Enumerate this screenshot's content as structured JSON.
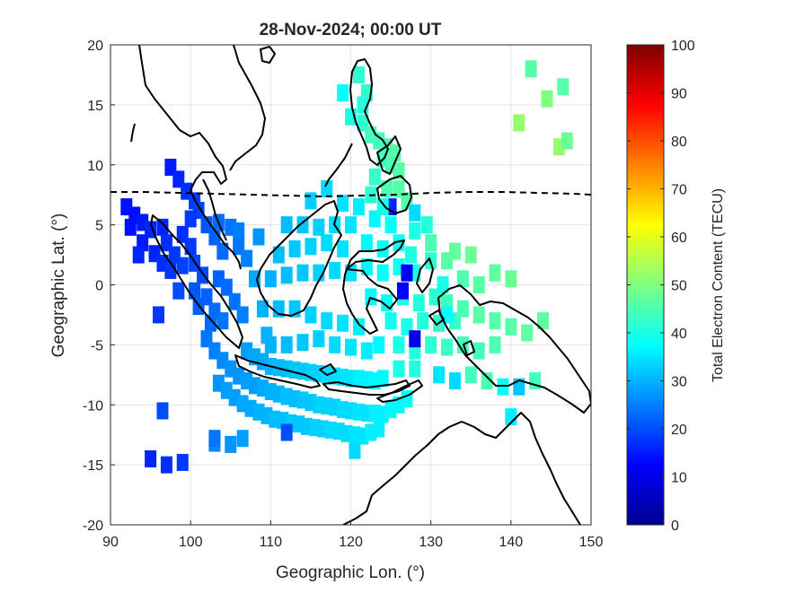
{
  "chart_data": {
    "type": "heatmap",
    "title": "28-Nov-2024; 00:00 UT",
    "xlabel": "Geographic Lon. (°)",
    "ylabel": "Geographic Lat. (°)",
    "xlim": [
      90,
      150
    ],
    "ylim": [
      -20,
      20
    ],
    "xticks": [
      "90",
      "100",
      "110",
      "120",
      "130",
      "140",
      "150"
    ],
    "yticks": [
      "-20",
      "-15",
      "-10",
      "-5",
      "0",
      "5",
      "10",
      "15",
      "20"
    ],
    "grid": true,
    "colorbar": {
      "label": "Total Electron Content (TECU)",
      "colormap": "jet",
      "range": [
        0,
        100
      ],
      "ticks": [
        "0",
        "10",
        "20",
        "30",
        "40",
        "50",
        "60",
        "70",
        "80",
        "90",
        "100"
      ]
    },
    "tec_patches": [
      [
        92.0,
        6.5,
        14
      ],
      [
        93.0,
        5.8,
        14
      ],
      [
        94.0,
        5.2,
        15
      ],
      [
        95.0,
        4.6,
        16
      ],
      [
        92.5,
        4.8,
        14
      ],
      [
        94.0,
        3.5,
        15
      ],
      [
        95.5,
        2.6,
        16
      ],
      [
        96.5,
        1.8,
        17
      ],
      [
        97.5,
        1.2,
        18
      ],
      [
        96.5,
        4.8,
        16
      ],
      [
        97.0,
        3.5,
        17
      ],
      [
        98.0,
        2.5,
        18
      ],
      [
        99.0,
        1.6,
        19
      ],
      [
        99.0,
        4.2,
        17
      ],
      [
        100.0,
        3.2,
        18
      ],
      [
        100.5,
        1.8,
        19
      ],
      [
        101.5,
        0.8,
        20
      ],
      [
        98.5,
        -0.5,
        20
      ],
      [
        100.5,
        -0.5,
        21
      ],
      [
        102.0,
        -1.0,
        22
      ],
      [
        103.0,
        -2.2,
        23
      ],
      [
        104.0,
        -3.0,
        24
      ],
      [
        102.5,
        -3.2,
        23
      ],
      [
        101.0,
        -1.8,
        22
      ],
      [
        103.5,
        0.5,
        22
      ],
      [
        104.5,
        -0.2,
        23
      ],
      [
        105.5,
        -1.4,
        24
      ],
      [
        106.5,
        -2.5,
        25
      ],
      [
        97.5,
        9.8,
        15
      ],
      [
        98.5,
        8.8,
        16
      ],
      [
        99.5,
        7.8,
        17
      ],
      [
        100.5,
        7.0,
        18
      ],
      [
        101.0,
        6.2,
        19
      ],
      [
        100.0,
        5.5,
        18
      ],
      [
        102.0,
        5.0,
        21
      ],
      [
        103.0,
        4.0,
        22
      ],
      [
        104.0,
        2.8,
        23
      ],
      [
        103.5,
        5.2,
        23
      ],
      [
        105.0,
        4.8,
        24
      ],
      [
        106.0,
        4.5,
        25
      ],
      [
        106.0,
        3.2,
        24
      ],
      [
        108.5,
        4.0,
        27
      ],
      [
        107.0,
        2.2,
        25
      ],
      [
        102.0,
        -4.5,
        24
      ],
      [
        103.0,
        -5.5,
        25
      ],
      [
        104.0,
        -6.3,
        26
      ],
      [
        105.0,
        -7.0,
        27
      ],
      [
        106.0,
        -7.6,
        27
      ],
      [
        107.0,
        -8.0,
        28
      ],
      [
        108.0,
        -8.4,
        28
      ],
      [
        109.0,
        -8.6,
        29
      ],
      [
        110.0,
        -8.9,
        30
      ],
      [
        111.0,
        -9.1,
        30
      ],
      [
        112.0,
        -9.3,
        31
      ],
      [
        113.0,
        -9.5,
        31
      ],
      [
        114.0,
        -9.6,
        32
      ],
      [
        115.0,
        -9.8,
        32
      ],
      [
        116.0,
        -10.0,
        33
      ],
      [
        117.0,
        -10.1,
        33
      ],
      [
        118.0,
        -10.2,
        33
      ],
      [
        119.0,
        -10.4,
        34
      ],
      [
        120.0,
        -10.5,
        34
      ],
      [
        121.0,
        -10.6,
        35
      ],
      [
        122.0,
        -10.7,
        35
      ],
      [
        123.0,
        -10.7,
        36
      ],
      [
        124.0,
        -10.8,
        36
      ],
      [
        125.0,
        -10.4,
        37
      ],
      [
        126.0,
        -10.0,
        37
      ],
      [
        127.0,
        -9.5,
        38
      ],
      [
        103.5,
        -8.2,
        27
      ],
      [
        104.5,
        -8.8,
        28
      ],
      [
        105.5,
        -9.4,
        28
      ],
      [
        106.5,
        -9.9,
        29
      ],
      [
        107.5,
        -10.3,
        29
      ],
      [
        108.5,
        -10.6,
        30
      ],
      [
        109.5,
        -10.9,
        30
      ],
      [
        110.5,
        -11.2,
        31
      ],
      [
        111.5,
        -11.3,
        31
      ],
      [
        112.5,
        -11.5,
        32
      ],
      [
        113.5,
        -11.6,
        32
      ],
      [
        114.5,
        -11.8,
        32
      ],
      [
        115.5,
        -11.9,
        33
      ],
      [
        116.5,
        -12.0,
        33
      ],
      [
        117.5,
        -12.1,
        34
      ],
      [
        118.5,
        -12.2,
        34
      ],
      [
        119.5,
        -12.4,
        34
      ],
      [
        120.5,
        -12.5,
        35
      ],
      [
        121.5,
        -12.6,
        35
      ],
      [
        122.5,
        -12.3,
        36
      ],
      [
        123.5,
        -12.0,
        36
      ],
      [
        112.0,
        -12.3,
        20
      ],
      [
        106.5,
        -12.8,
        28
      ],
      [
        105.0,
        -13.3,
        27
      ],
      [
        103.0,
        -13.2,
        26
      ],
      [
        120.5,
        -13.8,
        34
      ],
      [
        107.0,
        -5.5,
        28
      ],
      [
        108.0,
        -6.0,
        29
      ],
      [
        109.0,
        -6.4,
        29
      ],
      [
        110.0,
        -6.8,
        30
      ],
      [
        111.0,
        -6.9,
        31
      ],
      [
        112.0,
        -7.0,
        31
      ],
      [
        113.0,
        -7.1,
        32
      ],
      [
        114.0,
        -7.2,
        32
      ],
      [
        115.0,
        -7.3,
        33
      ],
      [
        116.0,
        -7.4,
        33
      ],
      [
        117.0,
        -7.5,
        34
      ],
      [
        118.0,
        -7.6,
        34
      ],
      [
        119.0,
        -7.7,
        35
      ],
      [
        120.0,
        -7.8,
        35
      ],
      [
        121.0,
        -7.8,
        36
      ],
      [
        122.0,
        -7.9,
        36
      ],
      [
        123.0,
        -8.0,
        37
      ],
      [
        124.0,
        -7.8,
        37
      ],
      [
        110.0,
        -5.0,
        30
      ],
      [
        112.0,
        -5.0,
        31
      ],
      [
        114.0,
        -4.8,
        32
      ],
      [
        116.0,
        -4.5,
        33
      ],
      [
        118.0,
        -5.0,
        34
      ],
      [
        120.0,
        -5.2,
        35
      ],
      [
        122.0,
        -5.5,
        36
      ],
      [
        123.5,
        -5.0,
        37
      ],
      [
        121.0,
        -3.5,
        36
      ],
      [
        119.0,
        -3.2,
        35
      ],
      [
        117.0,
        -3.0,
        34
      ],
      [
        115.0,
        -2.5,
        33
      ],
      [
        113.0,
        -2.0,
        32
      ],
      [
        111.0,
        -2.0,
        31
      ],
      [
        109.0,
        -2.0,
        30
      ],
      [
        108.0,
        0.5,
        29
      ],
      [
        110.0,
        0.5,
        30
      ],
      [
        112.0,
        0.8,
        31
      ],
      [
        114.0,
        1.0,
        32
      ],
      [
        116.0,
        1.0,
        33
      ],
      [
        118.0,
        1.2,
        34
      ],
      [
        120.0,
        1.0,
        35
      ],
      [
        111.0,
        2.5,
        31
      ],
      [
        113.0,
        3.0,
        32
      ],
      [
        115.0,
        3.2,
        33
      ],
      [
        117.0,
        3.5,
        34
      ],
      [
        119.0,
        3.0,
        35
      ],
      [
        112.0,
        5.0,
        31
      ],
      [
        114.0,
        5.0,
        32
      ],
      [
        116.0,
        4.8,
        33
      ],
      [
        118.0,
        5.0,
        34
      ],
      [
        120.0,
        5.0,
        35
      ],
      [
        115.0,
        7.0,
        33
      ],
      [
        117.0,
        8.0,
        34
      ],
      [
        119.0,
        6.8,
        35
      ],
      [
        121.0,
        6.5,
        36
      ],
      [
        123.0,
        5.5,
        37
      ],
      [
        125.0,
        5.0,
        38
      ],
      [
        122.0,
        3.5,
        37
      ],
      [
        124.0,
        3.0,
        38
      ],
      [
        126.0,
        3.5,
        39
      ],
      [
        128.0,
        4.5,
        40
      ],
      [
        129.5,
        5.0,
        41
      ],
      [
        122.0,
        1.5,
        37
      ],
      [
        124.0,
        1.0,
        38
      ],
      [
        126.0,
        1.5,
        39
      ],
      [
        128.0,
        1.0,
        40
      ],
      [
        130.0,
        2.0,
        42
      ],
      [
        122.5,
        -1.0,
        38
      ],
      [
        124.5,
        -1.5,
        39
      ],
      [
        126.5,
        -1.0,
        40
      ],
      [
        128.5,
        -1.5,
        41
      ],
      [
        130.5,
        -1.0,
        42
      ],
      [
        125.0,
        -3.0,
        39
      ],
      [
        127.0,
        -3.5,
        40
      ],
      [
        129.0,
        -3.0,
        41
      ],
      [
        131.0,
        -3.2,
        42
      ],
      [
        133.0,
        -3.0,
        43
      ],
      [
        126.0,
        -5.0,
        40
      ],
      [
        128.0,
        -5.5,
        41
      ],
      [
        130.0,
        -5.0,
        42
      ],
      [
        132.0,
        -5.2,
        43
      ],
      [
        134.0,
        -5.0,
        44
      ],
      [
        136.0,
        -5.5,
        44
      ],
      [
        138.0,
        -5.0,
        45
      ],
      [
        126.0,
        -7.0,
        40
      ],
      [
        128.0,
        -7.0,
        41
      ],
      [
        131.0,
        -7.5,
        35
      ],
      [
        133.0,
        -8.0,
        34
      ],
      [
        135.0,
        -7.5,
        44
      ],
      [
        137.0,
        -8.0,
        45
      ],
      [
        139.0,
        -8.5,
        38
      ],
      [
        141.0,
        -8.5,
        32
      ],
      [
        143.0,
        -8.0,
        44
      ],
      [
        132.0,
        -1.5,
        44
      ],
      [
        134.0,
        -2.0,
        45
      ],
      [
        136.0,
        -2.5,
        46
      ],
      [
        138.0,
        -3.0,
        46
      ],
      [
        140.0,
        -3.5,
        46
      ],
      [
        142.0,
        -4.0,
        47
      ],
      [
        144.0,
        -3.0,
        47
      ],
      [
        134.0,
        0.5,
        45
      ],
      [
        136.0,
        0.0,
        46
      ],
      [
        138.0,
        1.0,
        47
      ],
      [
        140.0,
        0.5,
        48
      ],
      [
        132.0,
        2.0,
        46
      ],
      [
        130.0,
        3.5,
        45
      ],
      [
        133.0,
        2.8,
        47
      ],
      [
        135.0,
        2.5,
        48
      ],
      [
        127.5,
        2.5,
        40
      ],
      [
        127.0,
        1.0,
        12
      ],
      [
        121.0,
        17.5,
        42
      ],
      [
        119.0,
        16.0,
        38
      ],
      [
        120.0,
        14.0,
        40
      ],
      [
        121.5,
        13.5,
        42
      ],
      [
        122.5,
        12.5,
        44
      ],
      [
        123.5,
        12.0,
        44
      ],
      [
        124.5,
        11.5,
        45
      ],
      [
        125.5,
        11.0,
        46
      ],
      [
        124.0,
        10.5,
        44
      ],
      [
        125.0,
        10.0,
        45
      ],
      [
        126.0,
        9.5,
        46
      ],
      [
        124.5,
        8.0,
        45
      ],
      [
        126.0,
        8.0,
        46
      ],
      [
        127.0,
        7.0,
        46
      ],
      [
        123.0,
        9.0,
        43
      ],
      [
        122.5,
        7.5,
        42
      ],
      [
        125.0,
        6.5,
        16
      ],
      [
        124.0,
        6.5,
        40
      ],
      [
        128.0,
        6.0,
        34
      ],
      [
        122.0,
        16.0,
        42
      ],
      [
        121.5,
        15.0,
        41
      ],
      [
        142.5,
        18.0,
        46
      ],
      [
        144.5,
        15.5,
        50
      ],
      [
        146.5,
        16.5,
        46
      ],
      [
        141.0,
        13.5,
        52
      ],
      [
        146.0,
        11.5,
        52
      ],
      [
        147.0,
        12.0,
        48
      ],
      [
        93.5,
        2.5,
        16
      ],
      [
        96.0,
        -2.5,
        18
      ],
      [
        96.5,
        -10.5,
        20
      ],
      [
        95.0,
        -14.5,
        16
      ],
      [
        97.0,
        -15.0,
        17
      ],
      [
        99.0,
        -14.8,
        18
      ],
      [
        103.0,
        -12.8,
        24
      ],
      [
        109.5,
        -4.2,
        30
      ],
      [
        126.5,
        -0.5,
        12
      ],
      [
        128.0,
        -4.5,
        10
      ],
      [
        140.0,
        -11.0,
        36
      ],
      [
        132.0,
        -2.5,
        38
      ],
      [
        131.5,
        0.0,
        40
      ]
    ]
  }
}
